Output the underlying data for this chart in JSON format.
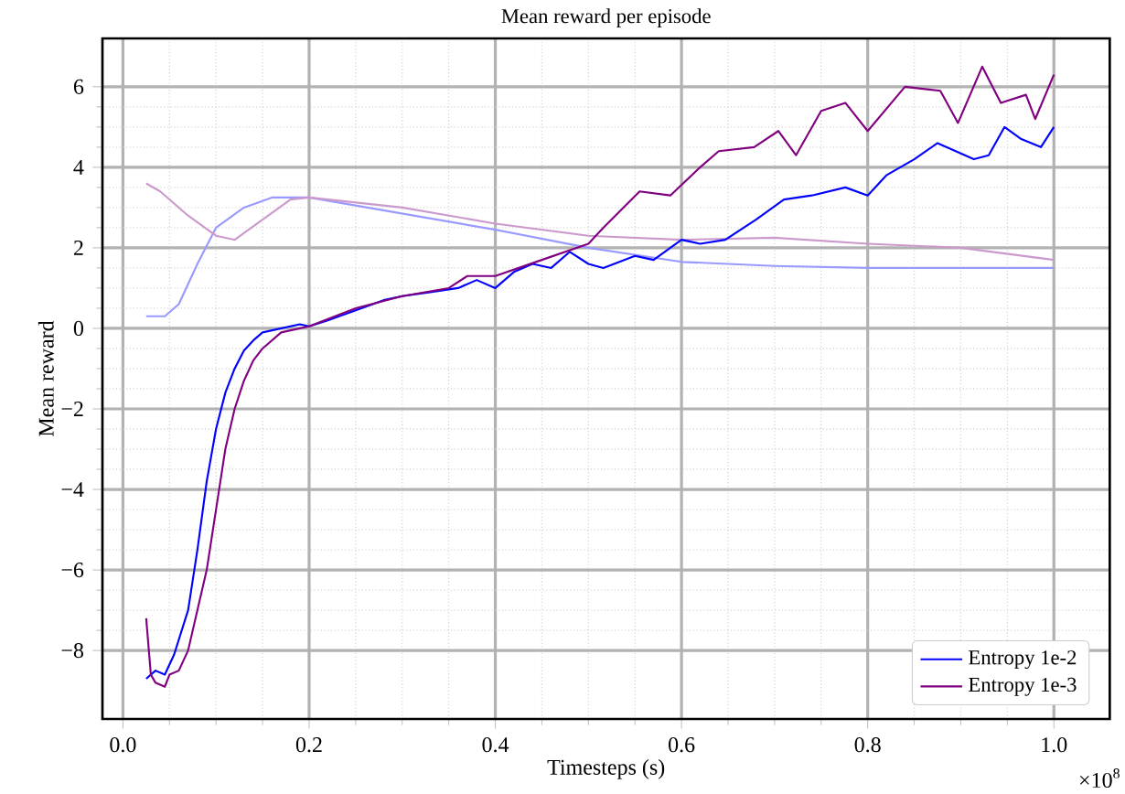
{
  "chart_data": {
    "type": "line",
    "title": "Mean reward per episode",
    "xlabel": "Timesteps (s)",
    "ylabel": "Mean reward",
    "xlim": [
      -0.022,
      1.06
    ],
    "ylim": [
      -9.7,
      7.2
    ],
    "xticks": [
      {
        "value": 0,
        "label": "0.0"
      },
      0.2,
      0.4,
      0.6,
      0.8,
      {
        "value": 1,
        "label": "1.0"
      }
    ],
    "yticks": [
      {
        "value": -8,
        "label": "−8"
      },
      {
        "value": -6,
        "label": "−6"
      },
      {
        "value": -4,
        "label": "−4"
      },
      {
        "value": -2,
        "label": "−2"
      },
      0,
      2,
      4,
      6
    ],
    "grid": true,
    "legend": "bottom right",
    "annotations": [
      "×10$^{8}$"
    ],
    "series": [
      {
        "color": "#9999ff",
        "x": [
          0.025,
          0.045,
          0.06,
          0.08,
          0.1,
          0.13,
          0.16,
          0.2,
          0.3,
          0.4,
          0.5,
          0.6,
          0.7,
          0.8,
          0.9,
          1.0
        ],
        "values": [
          0.3,
          0.3,
          0.6,
          1.6,
          2.5,
          3.0,
          3.25,
          3.25,
          2.85,
          2.45,
          2.0,
          1.65,
          1.55,
          1.5,
          1.5,
          1.5
        ]
      },
      {
        "color": "#cc99cc",
        "x": [
          0.025,
          0.04,
          0.07,
          0.1,
          0.12,
          0.15,
          0.18,
          0.2,
          0.3,
          0.4,
          0.5,
          0.6,
          0.7,
          0.8,
          0.9,
          1.0
        ],
        "values": [
          3.6,
          3.4,
          2.8,
          2.3,
          2.2,
          2.7,
          3.2,
          3.25,
          3.0,
          2.6,
          2.3,
          2.2,
          2.25,
          2.1,
          2.0,
          1.7
        ]
      },
      {
        "name": "Entropy 1e-2",
        "color": "#0000ff",
        "x": [
          0.025,
          0.035,
          0.045,
          0.055,
          0.07,
          0.08,
          0.09,
          0.1,
          0.11,
          0.12,
          0.13,
          0.14,
          0.15,
          0.17,
          0.19,
          0.2,
          0.22,
          0.25,
          0.28,
          0.3,
          0.33,
          0.36,
          0.38,
          0.4,
          0.42,
          0.44,
          0.46,
          0.48,
          0.5,
          0.516,
          0.55,
          0.57,
          0.6,
          0.62,
          0.647,
          0.68,
          0.71,
          0.74,
          0.776,
          0.8,
          0.82,
          0.85,
          0.875,
          0.914,
          0.93,
          0.947,
          0.965,
          0.986,
          1.0
        ],
        "values": [
          -8.7,
          -8.5,
          -8.6,
          -8.1,
          -7.0,
          -5.5,
          -3.8,
          -2.5,
          -1.6,
          -1.0,
          -0.55,
          -0.3,
          -0.1,
          0.0,
          0.1,
          0.05,
          0.2,
          0.45,
          0.7,
          0.8,
          0.9,
          1.0,
          1.2,
          1.0,
          1.4,
          1.6,
          1.5,
          1.9,
          1.6,
          1.5,
          1.8,
          1.7,
          2.2,
          2.1,
          2.2,
          2.7,
          3.2,
          3.3,
          3.5,
          3.3,
          3.8,
          4.2,
          4.6,
          4.2,
          4.3,
          5.0,
          4.7,
          4.5,
          5.0
        ]
      },
      {
        "name": "Entropy 1e-3",
        "color": "#800080",
        "x": [
          0.025,
          0.03,
          0.035,
          0.045,
          0.05,
          0.06,
          0.07,
          0.08,
          0.09,
          0.1,
          0.11,
          0.12,
          0.13,
          0.14,
          0.15,
          0.17,
          0.2,
          0.25,
          0.3,
          0.35,
          0.37,
          0.4,
          0.45,
          0.5,
          0.516,
          0.555,
          0.588,
          0.62,
          0.64,
          0.678,
          0.704,
          0.723,
          0.75,
          0.776,
          0.8,
          0.84,
          0.878,
          0.897,
          0.923,
          0.943,
          0.97,
          0.98,
          1.0
        ],
        "values": [
          -7.2,
          -8.6,
          -8.8,
          -8.9,
          -8.6,
          -8.5,
          -8.0,
          -7.0,
          -6.0,
          -4.5,
          -3.0,
          -2.0,
          -1.3,
          -0.8,
          -0.5,
          -0.1,
          0.05,
          0.5,
          0.8,
          1.0,
          1.3,
          1.3,
          1.7,
          2.1,
          2.5,
          3.4,
          3.3,
          4.0,
          4.4,
          4.5,
          4.9,
          4.3,
          5.4,
          5.6,
          4.9,
          6.0,
          5.9,
          5.1,
          6.5,
          5.6,
          5.8,
          5.2,
          6.3
        ]
      }
    ]
  }
}
